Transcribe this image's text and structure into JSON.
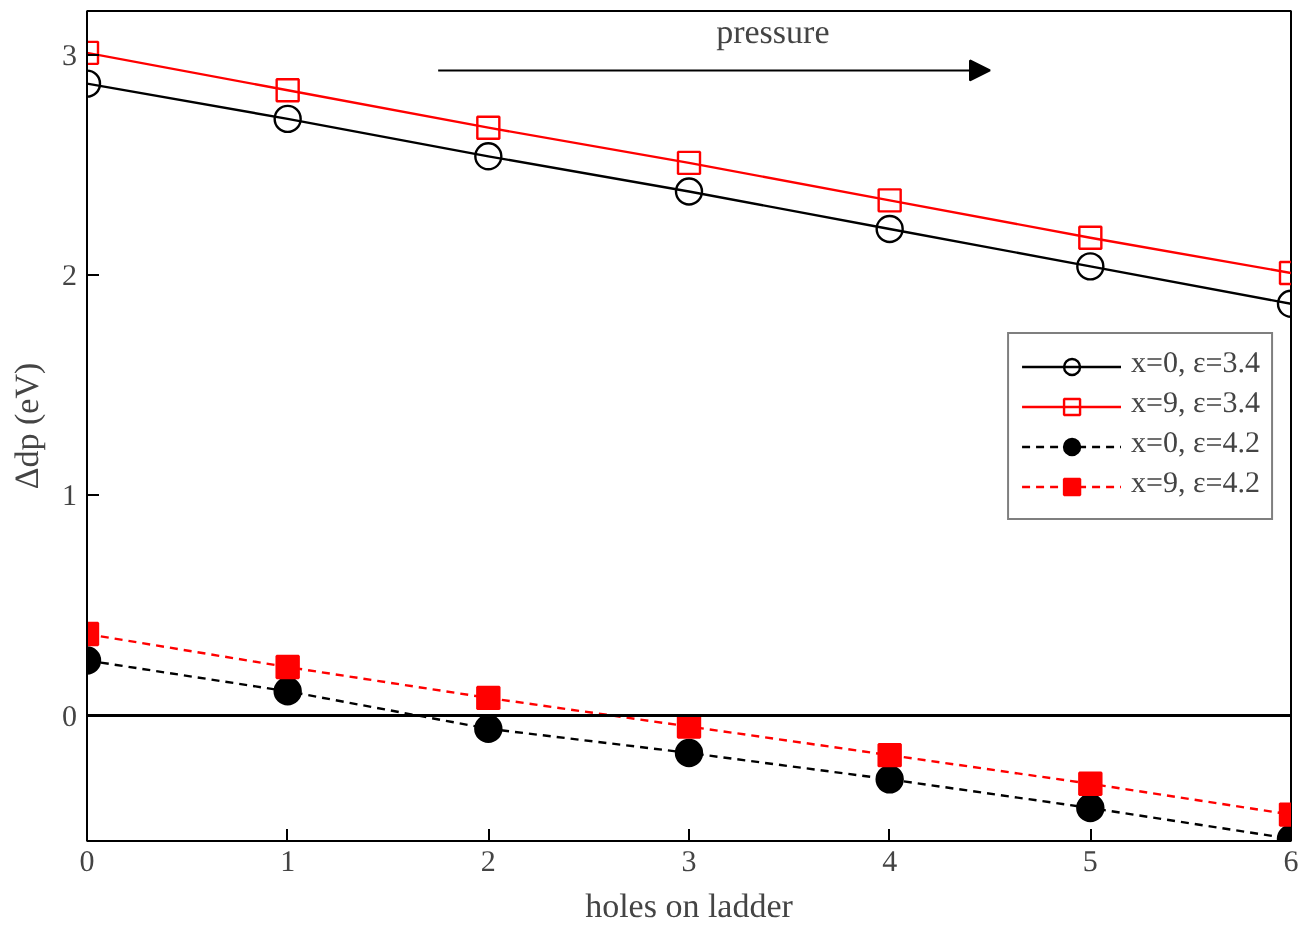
{
  "chart_data": {
    "type": "line",
    "xlabel": "holes on ladder",
    "ylabel": "Δdp (eV)",
    "x": [
      0,
      1,
      2,
      3,
      4,
      5,
      6
    ],
    "xlim": [
      0,
      6
    ],
    "xticks": [
      0,
      1,
      2,
      3,
      4,
      5,
      6
    ],
    "ylim": [
      -0.57,
      3.2
    ],
    "yticks": [
      0,
      1,
      2,
      3
    ],
    "series": [
      {
        "name": "x=0, ε=3.4",
        "color": "#000000",
        "marker": "circle",
        "line_style": "solid",
        "values": [
          2.87,
          2.71,
          2.54,
          2.38,
          2.21,
          2.04,
          1.87
        ]
      },
      {
        "name": "x=9, ε=3.4",
        "color": "#ff0000",
        "marker": "square",
        "line_style": "solid",
        "values": [
          3.01,
          2.84,
          2.67,
          2.51,
          2.34,
          2.17,
          2.01
        ]
      },
      {
        "name": "x=0, ε=4.2",
        "color": "#000000",
        "marker": "circle",
        "line_style": "dashed",
        "values": [
          0.25,
          0.11,
          -0.06,
          -0.17,
          -0.29,
          -0.42,
          -0.56
        ]
      },
      {
        "name": "x=9, ε=4.2",
        "color": "#ff0000",
        "marker": "square",
        "line_style": "dashed",
        "values": [
          0.37,
          0.22,
          0.08,
          -0.05,
          -0.18,
          -0.31,
          -0.45
        ]
      }
    ],
    "ref_lines": [
      {
        "axis": "y",
        "value": 0,
        "color": "#000000"
      }
    ],
    "annotations": [
      "pressure"
    ],
    "legend": "right",
    "grid": false
  }
}
